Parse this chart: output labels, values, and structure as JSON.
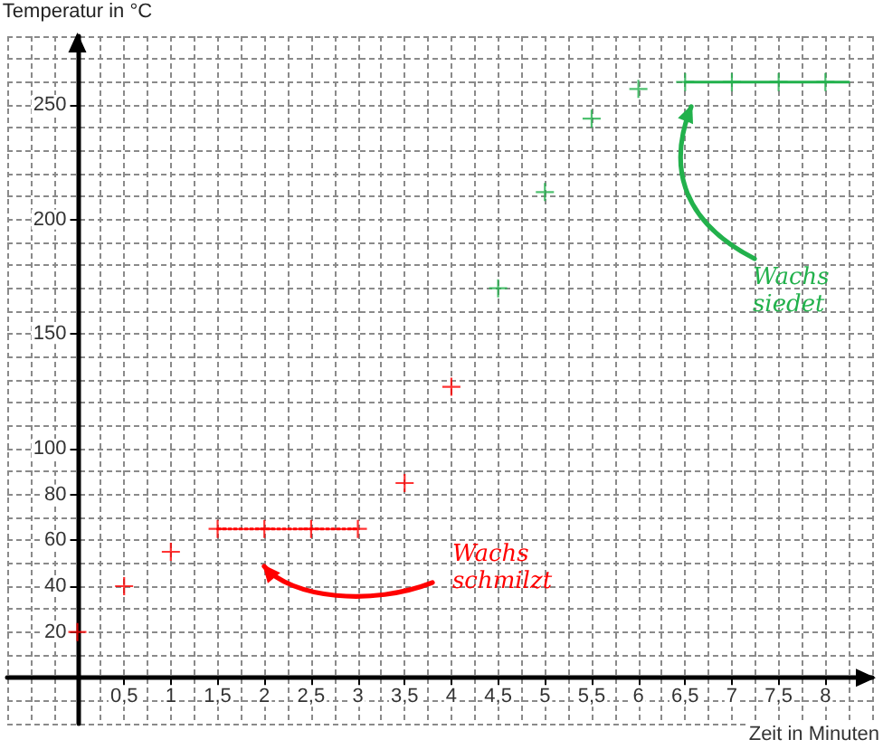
{
  "chart_data": {
    "type": "scatter",
    "xlabel": "Zeit in Minuten",
    "ylabel": "Temperatur in °C",
    "marker": "cross",
    "grid": true,
    "series": [
      {
        "color": "#ff0000",
        "x": [
          0,
          0.5,
          1,
          1.5,
          2,
          2.5,
          3,
          3.5,
          4
        ],
        "values": [
          20,
          40,
          55,
          65,
          65,
          65,
          65,
          85,
          127
        ]
      },
      {
        "type": "line",
        "color": "#ff0000",
        "x": [
          1.5,
          3
        ],
        "values": [
          65,
          65
        ],
        "marker": "none",
        "line_style": "dotted"
      },
      {
        "color": "#22b14c",
        "x": [
          4.5,
          5,
          5.5,
          6,
          6.5,
          7,
          7.5,
          8
        ],
        "values": [
          170,
          212,
          244,
          257,
          260,
          260,
          260,
          260
        ]
      },
      {
        "type": "line",
        "color": "#22b14c",
        "x": [
          6.5,
          8.25
        ],
        "values": [
          260,
          260
        ],
        "marker": "none",
        "line_style": "solid"
      }
    ],
    "xlim": [
      -0.75,
      8.5
    ],
    "xticks": [
      {
        "value": -0.75,
        "label": null
      },
      {
        "value": -0.5,
        "label": null
      },
      {
        "value": -0.25,
        "label": null
      },
      {
        "value": 0,
        "label": null
      },
      {
        "value": 0.25,
        "label": null
      },
      {
        "value": 0.5,
        "label": "0,5"
      },
      {
        "value": 0.75,
        "label": null
      },
      1,
      {
        "value": 1.25,
        "label": null
      },
      {
        "value": 1.5,
        "label": "1,5"
      },
      {
        "value": 1.75,
        "label": null
      },
      2,
      {
        "value": 2.25,
        "label": null
      },
      {
        "value": 2.5,
        "label": "2,5"
      },
      {
        "value": 2.75,
        "label": null
      },
      3,
      {
        "value": 3.25,
        "label": null
      },
      {
        "value": 3.5,
        "label": "3,5"
      },
      {
        "value": 3.75,
        "label": null
      },
      4,
      {
        "value": 4.25,
        "label": null
      },
      {
        "value": 4.5,
        "label": "4,5"
      },
      {
        "value": 4.75,
        "label": null
      },
      5,
      {
        "value": 5.25,
        "label": null
      },
      {
        "value": 5.5,
        "label": "5,5"
      },
      {
        "value": 5.75,
        "label": null
      },
      6,
      {
        "value": 6.25,
        "label": null
      },
      {
        "value": 6.5,
        "label": "6,5"
      },
      {
        "value": 6.75,
        "label": null
      },
      7,
      {
        "value": 7.25,
        "label": null
      },
      {
        "value": 7.5,
        "label": "7,5"
      },
      {
        "value": 7.75,
        "label": null
      },
      8,
      {
        "value": 8.25,
        "label": null
      },
      {
        "value": 8.5,
        "label": null
      }
    ],
    "ylim": [
      -20,
      280
    ],
    "yticks": [
      {
        "value": -20,
        "label": null
      },
      {
        "value": -10,
        "label": null
      },
      {
        "value": 0,
        "label": null
      },
      {
        "value": 10,
        "label": null
      },
      20,
      {
        "value": 30,
        "label": null
      },
      40,
      {
        "value": 50,
        "label": null
      },
      60,
      {
        "value": 70,
        "label": null
      },
      80,
      {
        "value": 90,
        "label": null
      },
      100,
      {
        "value": 110,
        "label": null
      },
      {
        "value": 120,
        "label": null
      },
      {
        "value": 130,
        "label": null
      },
      {
        "value": 140,
        "label": null
      },
      150,
      {
        "value": 160,
        "label": null
      },
      {
        "value": 170,
        "label": null
      },
      {
        "value": 180,
        "label": null
      },
      {
        "value": 190,
        "label": null
      },
      200,
      {
        "value": 210,
        "label": null
      },
      {
        "value": 220,
        "label": null
      },
      {
        "value": 230,
        "label": null
      },
      {
        "value": 240,
        "label": null
      },
      250,
      {
        "value": 260,
        "label": null
      },
      {
        "value": 270,
        "label": null
      },
      {
        "value": 280,
        "label": null
      }
    ],
    "annotations": [
      "Wachs schmilzt",
      "Wachs siedet"
    ]
  }
}
